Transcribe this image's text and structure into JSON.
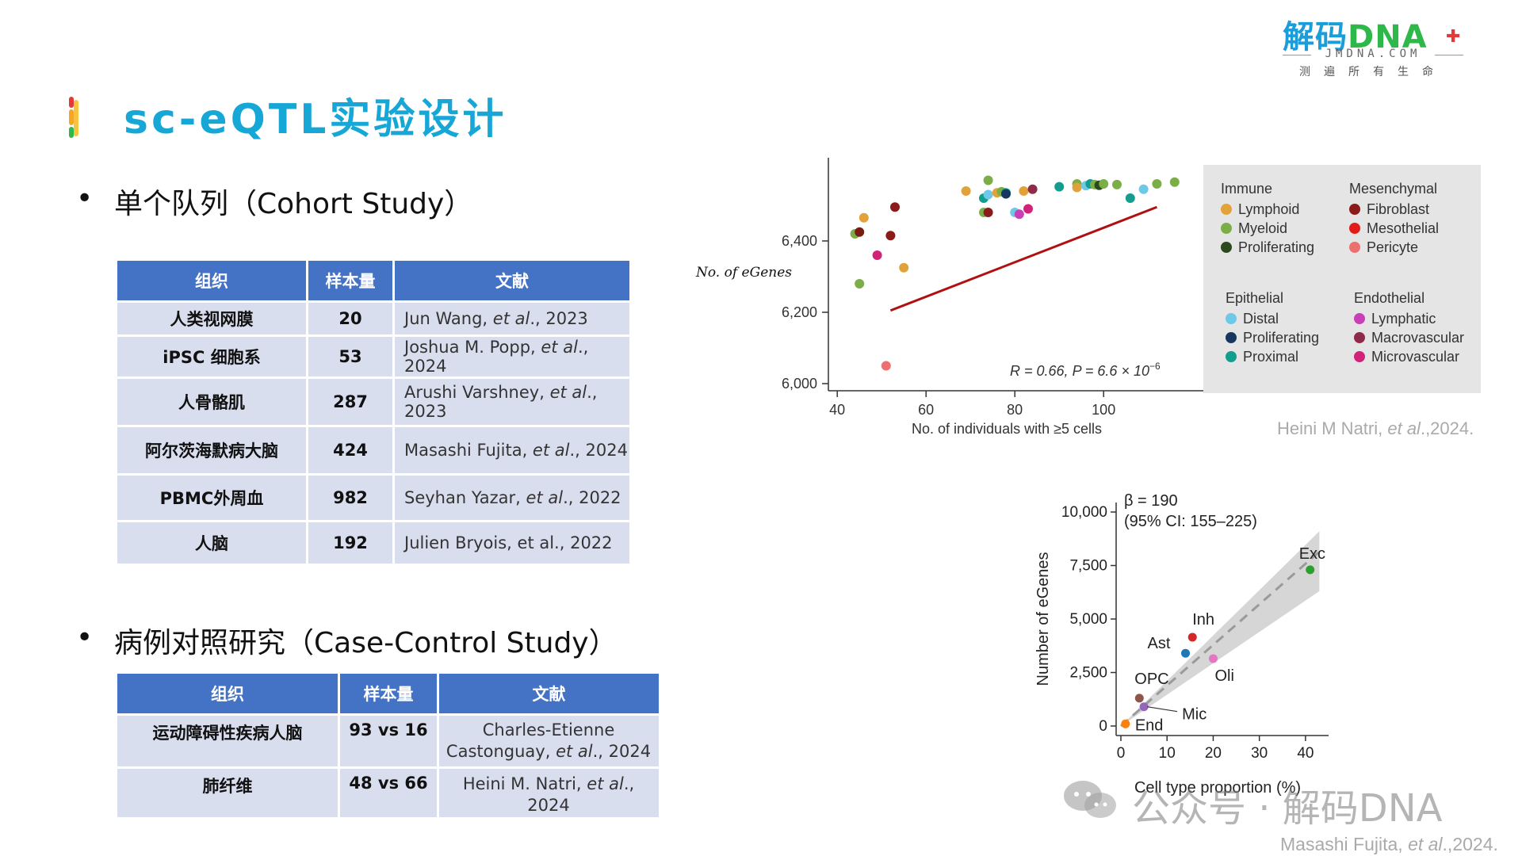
{
  "header": {
    "title": "sc-eQTL实验设计",
    "accent_colors": [
      "#f5a623",
      "#2eb84a",
      "#e23a3a",
      "#16a7d6"
    ]
  },
  "logo": {
    "main": "解码",
    "main_dna": "DNA",
    "sub": "JMDNA.COM",
    "tagline": "测遍所有生命"
  },
  "section1": {
    "heading": "单个队列（Cohort Study）",
    "columns": [
      "组织",
      "样本量",
      "文献"
    ],
    "rows": [
      {
        "tissue": "人类视网膜",
        "n": "20",
        "ref_author": "Jun Wang, ",
        "ref_etal": "et al",
        "ref_rest": "., 2023"
      },
      {
        "tissue": "iPSC 细胞系",
        "n": "53",
        "ref_author": "Joshua M. Popp, ",
        "ref_etal": "et al",
        "ref_rest": "., 2024"
      },
      {
        "tissue": "人骨骼肌",
        "n": "287",
        "ref_author": "Arushi Varshney, ",
        "ref_etal": "et al",
        "ref_rest": "., 2023"
      },
      {
        "tissue": "阿尔茨海默病大脑",
        "n": "424",
        "ref_author": "Masashi Fujita, ",
        "ref_etal": "et al",
        "ref_rest": "., 2024"
      },
      {
        "tissue": "PBMC外周血",
        "n": "982",
        "ref_author": "Seyhan Yazar, ",
        "ref_etal": "et al",
        "ref_rest": "., 2022"
      },
      {
        "tissue": "人脑",
        "n": "192",
        "ref_author": "Julien Bryois, et al., 2022",
        "ref_etal": "",
        "ref_rest": ""
      }
    ]
  },
  "section2": {
    "heading": "病例对照研究（Case-Control Study）",
    "columns": [
      "组织",
      "样本量",
      "文献"
    ],
    "rows": [
      {
        "tissue": "运动障碍性疾病人脑",
        "n": "93 vs 16",
        "ref_line1": "Charles-Etienne",
        "ref_author": "Castonguay, ",
        "ref_etal": "et al",
        "ref_rest": "., 2024"
      },
      {
        "tissue": "肺纤维",
        "n": "48 vs 66",
        "ref_line1": "",
        "ref_author": "Heini M. Natri, ",
        "ref_etal": "et al",
        "ref_rest": "., 2024"
      }
    ]
  },
  "chart_data": [
    {
      "type": "scatter",
      "xlabel": "No. of individuals with ≥5 cells",
      "ylabel": "No. of eGenes",
      "xlim": [
        38,
        118
      ],
      "ylim": [
        5980,
        6620
      ],
      "xticks": [
        "40",
        "60",
        "80",
        "100"
      ],
      "yticks": [
        "6,000",
        "6,200",
        "6,400"
      ],
      "annotation": {
        "r": "R = 0.66, ",
        "p": "P = 6.6 × 10",
        "exp": "−6"
      },
      "trend": {
        "x": [
          52,
          112
        ],
        "y": [
          6205,
          6495
        ],
        "color": "#b01010"
      },
      "points": [
        {
          "x": 44,
          "y": 6420,
          "c": "#7cae48"
        },
        {
          "x": 45,
          "y": 6425,
          "c": "#7a1b12"
        },
        {
          "x": 46,
          "y": 6465,
          "c": "#e2a23a"
        },
        {
          "x": 45,
          "y": 6280,
          "c": "#7cae48"
        },
        {
          "x": 49,
          "y": 6360,
          "c": "#d2237a"
        },
        {
          "x": 51,
          "y": 6050,
          "c": "#ec7070"
        },
        {
          "x": 52,
          "y": 6415,
          "c": "#8b1a1a"
        },
        {
          "x": 53,
          "y": 6495,
          "c": "#8b1a1a"
        },
        {
          "x": 55,
          "y": 6325,
          "c": "#e2a23a"
        },
        {
          "x": 69,
          "y": 6540,
          "c": "#e2a23a"
        },
        {
          "x": 73,
          "y": 6480,
          "c": "#7cae48"
        },
        {
          "x": 73,
          "y": 6520,
          "c": "#139d8e"
        },
        {
          "x": 74,
          "y": 6530,
          "c": "#6ec8e8"
        },
        {
          "x": 74,
          "y": 6570,
          "c": "#7cae48"
        },
        {
          "x": 74,
          "y": 6480,
          "c": "#8b1a1a"
        },
        {
          "x": 76,
          "y": 6535,
          "c": "#e2a23a"
        },
        {
          "x": 77,
          "y": 6538,
          "c": "#7cae48"
        },
        {
          "x": 78,
          "y": 6535,
          "c": "#139d8e"
        },
        {
          "x": 78,
          "y": 6532,
          "c": "#17375e"
        },
        {
          "x": 80,
          "y": 6480,
          "c": "#6ec8e8"
        },
        {
          "x": 81,
          "y": 6475,
          "c": "#c93fb6"
        },
        {
          "x": 82,
          "y": 6540,
          "c": "#e2a23a"
        },
        {
          "x": 83,
          "y": 6490,
          "c": "#d2237a"
        },
        {
          "x": 84,
          "y": 6545,
          "c": "#8e2a4a"
        },
        {
          "x": 90,
          "y": 6552,
          "c": "#139d8e"
        },
        {
          "x": 94,
          "y": 6560,
          "c": "#7cae48"
        },
        {
          "x": 94,
          "y": 6550,
          "c": "#e2a23a"
        },
        {
          "x": 96,
          "y": 6555,
          "c": "#6ec8e8"
        },
        {
          "x": 97,
          "y": 6560,
          "c": "#139d8e"
        },
        {
          "x": 98,
          "y": 6558,
          "c": "#7cae48"
        },
        {
          "x": 99,
          "y": 6556,
          "c": "#2d4a1e"
        },
        {
          "x": 100,
          "y": 6560,
          "c": "#7cae48"
        },
        {
          "x": 103,
          "y": 6558,
          "c": "#7cae48"
        },
        {
          "x": 106,
          "y": 6520,
          "c": "#139d8e"
        },
        {
          "x": 109,
          "y": 6545,
          "c": "#6ec8e8"
        },
        {
          "x": 112,
          "y": 6560,
          "c": "#7cae48"
        },
        {
          "x": 116,
          "y": 6565,
          "c": "#7cae48"
        }
      ],
      "legend": [
        {
          "group": "Immune",
          "items": [
            [
              "Lymphoid",
              "#e2a23a"
            ],
            [
              "Myeloid",
              "#7cae48"
            ],
            [
              "Proliferating",
              "#2d4a1e"
            ]
          ]
        },
        {
          "group": "Mesenchymal",
          "items": [
            [
              "Fibroblast",
              "#8b1a1a"
            ],
            [
              "Mesothelial",
              "#e31b1b"
            ],
            [
              "Pericyte",
              "#ec7070"
            ]
          ]
        },
        {
          "group": "Epithelial",
          "items": [
            [
              "Distal",
              "#6ec8e8"
            ],
            [
              "Proliferating",
              "#17375e"
            ],
            [
              "Proximal",
              "#139d8e"
            ]
          ]
        },
        {
          "group": "Endothelial",
          "items": [
            [
              "Lymphatic",
              "#c93fb6"
            ],
            [
              "Macrovascular",
              "#8e2a4a"
            ],
            [
              "Microvascular",
              "#d2237a"
            ]
          ]
        }
      ],
      "citation_author": "Heini M Natri, ",
      "citation_etal": "et al",
      "citation_rest": ".,2024."
    },
    {
      "type": "scatter",
      "xlabel": "Cell type proportion (%)",
      "ylabel": "Number of eGenes",
      "xlim": [
        0,
        45
      ],
      "ylim": [
        0,
        10500
      ],
      "xticks": [
        "0",
        "10",
        "20",
        "30",
        "40"
      ],
      "yticks": [
        "0",
        "2,500",
        "5,000",
        "7,500",
        "10,000"
      ],
      "annotation_beta": "β = 190",
      "annotation_ci": "(95% CI: 155–225)",
      "points": [
        {
          "label": "Exc",
          "x": 41,
          "y": 7300,
          "c": "#2ca02c"
        },
        {
          "label": "Inh",
          "x": 15.5,
          "y": 4150,
          "c": "#d62728"
        },
        {
          "label": "Ast",
          "x": 14,
          "y": 3400,
          "c": "#1f77b4"
        },
        {
          "label": "Oli",
          "x": 20,
          "y": 3150,
          "c": "#e377c2"
        },
        {
          "label": "OPC",
          "x": 4,
          "y": 1300,
          "c": "#8c564b"
        },
        {
          "label": "Mic",
          "x": 5,
          "y": 900,
          "c": "#9467bd"
        },
        {
          "label": "End",
          "x": 1,
          "y": 100,
          "c": "#ff7f0e"
        }
      ],
      "citation_author": "Masashi Fujita, ",
      "citation_etal": "et al",
      "citation_rest": ".,2024."
    }
  ],
  "watermark": "公众号 · 解码DNA"
}
